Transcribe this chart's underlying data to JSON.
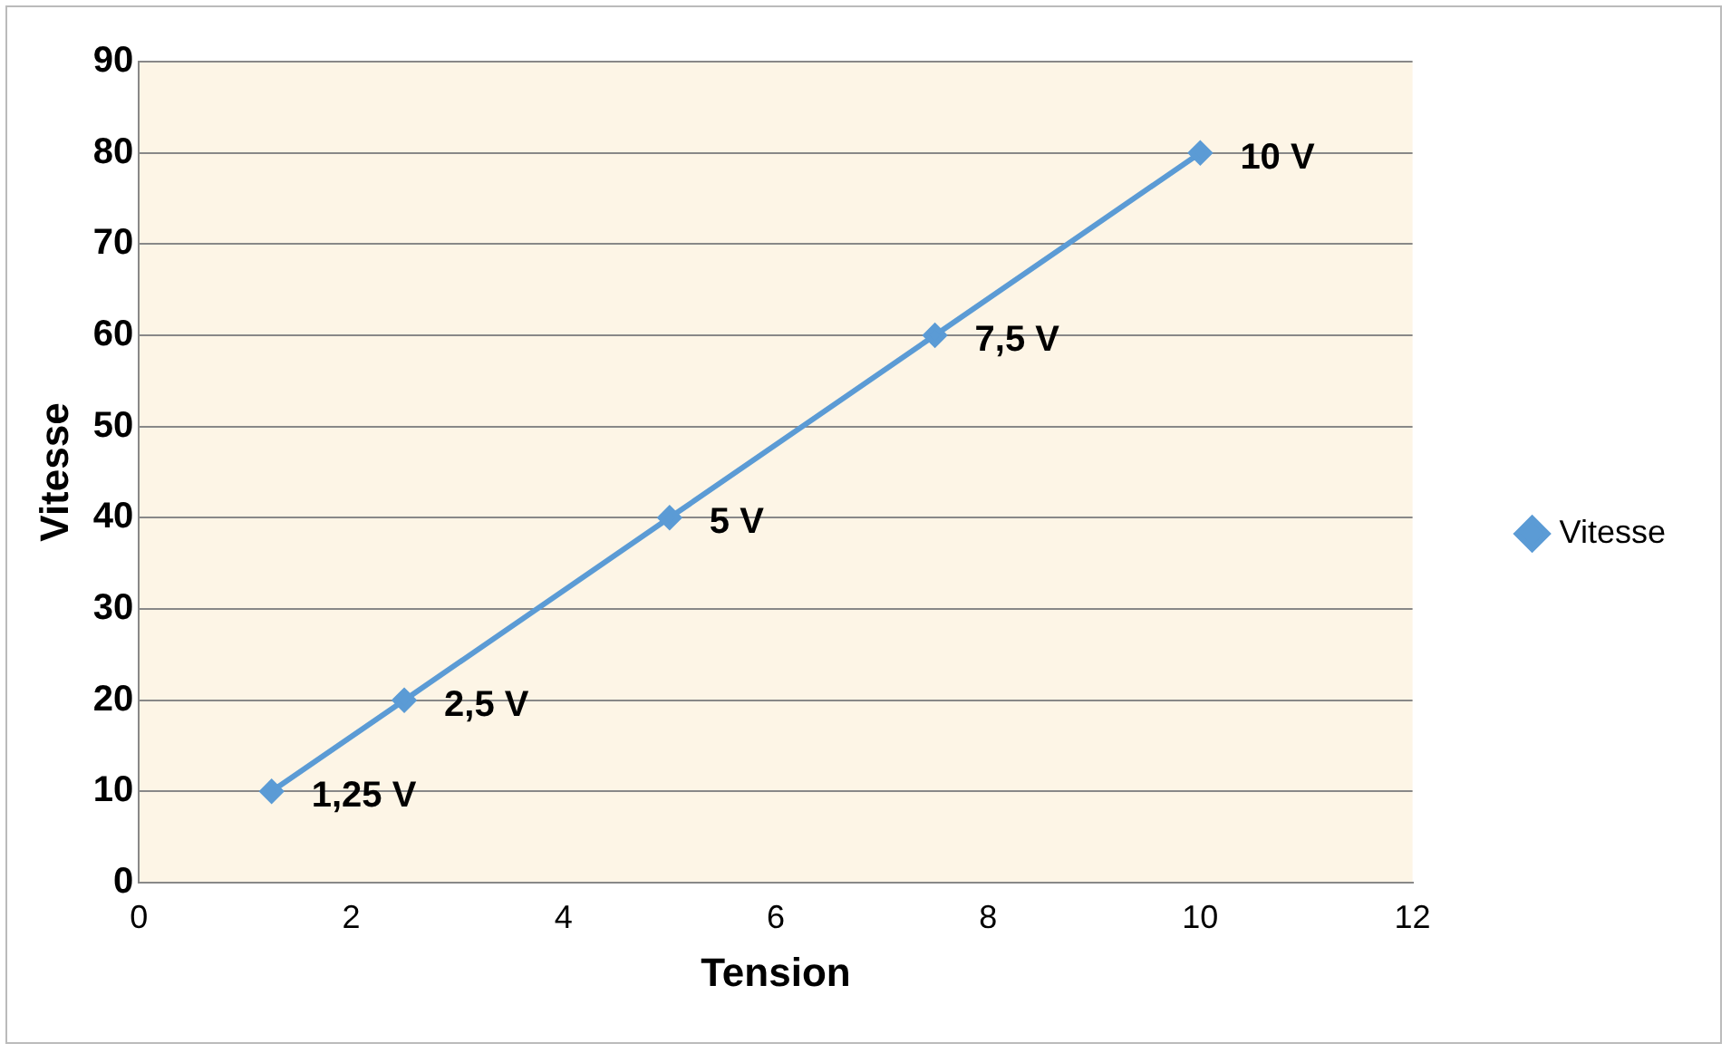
{
  "chart_data": {
    "type": "line",
    "xlabel": "Tension",
    "ylabel": "Vitesse",
    "x": [
      1.25,
      2.5,
      5,
      7.5,
      10
    ],
    "series": [
      {
        "name": "Vitesse",
        "color": "#5b9bd5",
        "values": [
          10,
          20,
          40,
          60,
          80
        ]
      }
    ],
    "annotations": [
      {
        "text": "1,25 V",
        "x": 1.25,
        "y": 10
      },
      {
        "text": "2,5 V",
        "x": 2.5,
        "y": 20
      },
      {
        "text": "5 V",
        "x": 5,
        "y": 40
      },
      {
        "text": "7,5 V",
        "x": 7.5,
        "y": 60
      },
      {
        "text": "10 V",
        "x": 10,
        "y": 80
      }
    ],
    "xlim": [
      0,
      12
    ],
    "xticks": [
      0,
      2,
      4,
      6,
      8,
      10,
      12
    ],
    "ylim": [
      0,
      90
    ],
    "yticks": [
      0,
      10,
      20,
      30,
      40,
      50,
      60,
      70,
      80,
      90
    ],
    "grid": "y",
    "legend": "right",
    "marker": "diamond",
    "line_style": "solid"
  }
}
